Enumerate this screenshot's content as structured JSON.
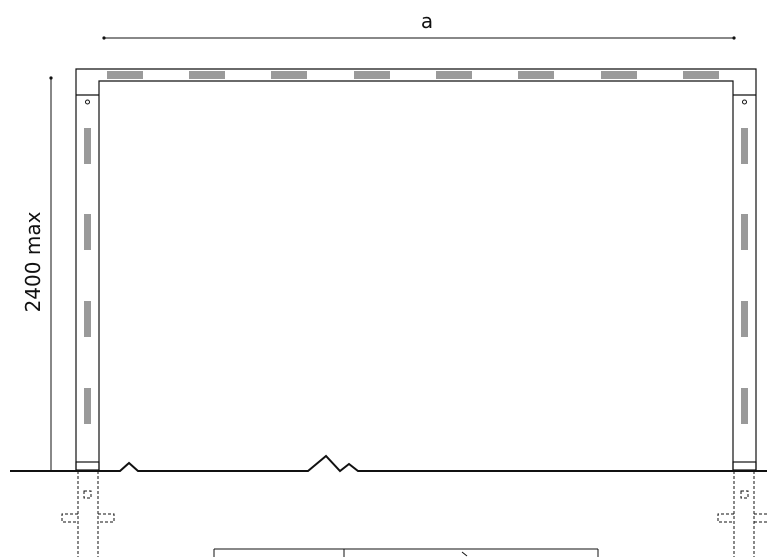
{
  "dimensions": {
    "width_label": "a",
    "height_label": "2400 max"
  },
  "colors": {
    "line": "#111111",
    "slot": "#9a9a9a",
    "background": "#ffffff"
  }
}
